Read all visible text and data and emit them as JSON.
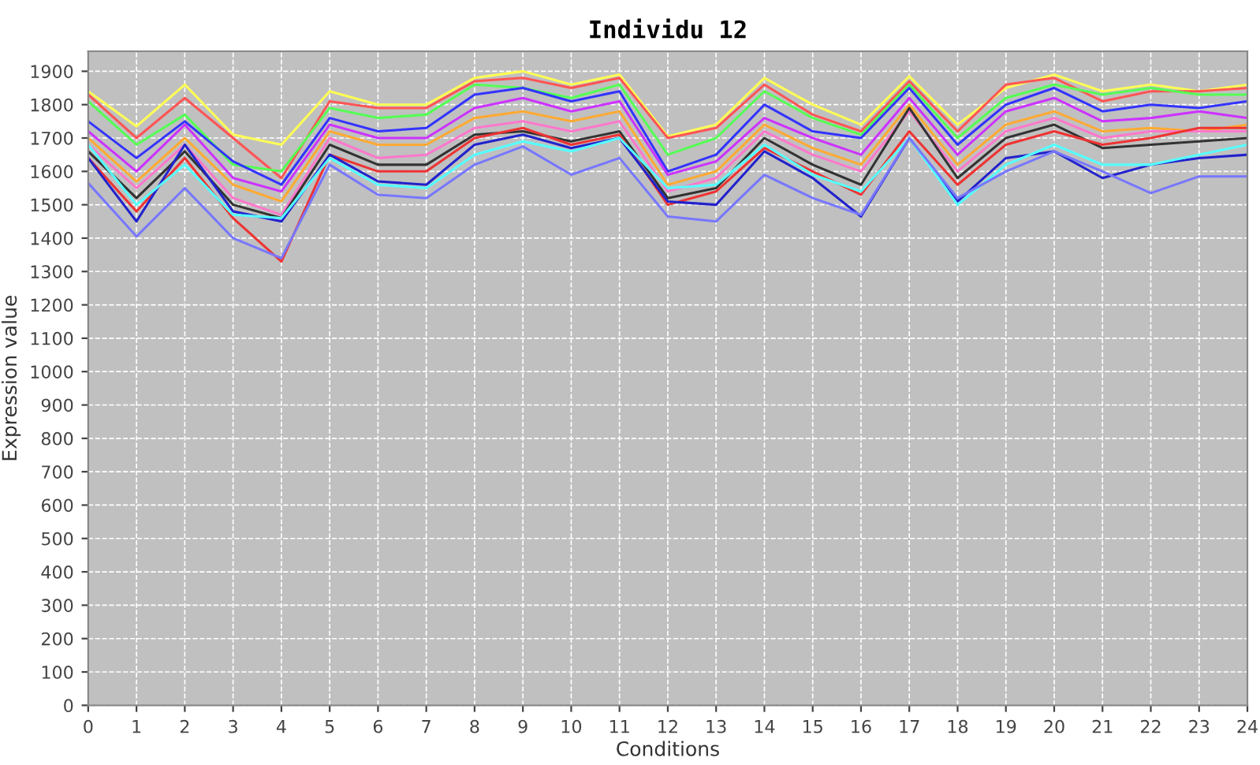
{
  "chart_data": {
    "type": "line",
    "title": "Individu 12",
    "xlabel": "Conditions",
    "ylabel": "Expression value",
    "x": [
      0,
      1,
      2,
      3,
      4,
      5,
      6,
      7,
      8,
      9,
      10,
      11,
      12,
      13,
      14,
      15,
      16,
      17,
      18,
      19,
      20,
      21,
      22,
      23,
      24
    ],
    "xlim": [
      0,
      24
    ],
    "xticks": [
      0,
      1,
      2,
      3,
      4,
      5,
      6,
      7,
      8,
      9,
      10,
      11,
      12,
      13,
      14,
      15,
      16,
      17,
      18,
      19,
      20,
      21,
      22,
      23,
      24
    ],
    "ylim": [
      0,
      1960
    ],
    "yticks": [
      0,
      100,
      200,
      300,
      400,
      500,
      600,
      700,
      800,
      900,
      1000,
      1100,
      1200,
      1300,
      1400,
      1500,
      1600,
      1700,
      1800,
      1900
    ],
    "grid": true,
    "legend": false,
    "marker": "none",
    "line_style": "solid",
    "series": [
      {
        "color": "#ffff55",
        "values": [
          1840,
          1735,
          1860,
          1710,
          1680,
          1840,
          1800,
          1800,
          1880,
          1900,
          1860,
          1890,
          1705,
          1740,
          1880,
          1800,
          1740,
          1885,
          1740,
          1850,
          1890,
          1840,
          1860,
          1840,
          1860
        ]
      },
      {
        "color": "#ff5555",
        "values": [
          1830,
          1700,
          1820,
          1700,
          1580,
          1810,
          1790,
          1790,
          1870,
          1880,
          1850,
          1880,
          1700,
          1730,
          1860,
          1770,
          1720,
          1870,
          1720,
          1860,
          1880,
          1810,
          1840,
          1840,
          1850
        ]
      },
      {
        "color": "#55ff55",
        "values": [
          1810,
          1680,
          1770,
          1620,
          1600,
          1790,
          1760,
          1770,
          1860,
          1850,
          1820,
          1860,
          1650,
          1700,
          1840,
          1760,
          1710,
          1860,
          1700,
          1820,
          1860,
          1830,
          1850,
          1830,
          1830
        ]
      },
      {
        "color": "#3333ff",
        "values": [
          1750,
          1640,
          1750,
          1630,
          1560,
          1760,
          1720,
          1730,
          1830,
          1850,
          1810,
          1840,
          1600,
          1650,
          1800,
          1720,
          1700,
          1850,
          1680,
          1800,
          1850,
          1780,
          1800,
          1790,
          1810
        ]
      },
      {
        "color": "#cc33ff",
        "values": [
          1720,
          1600,
          1740,
          1580,
          1540,
          1740,
          1700,
          1700,
          1790,
          1820,
          1780,
          1810,
          1590,
          1630,
          1760,
          1700,
          1650,
          1820,
          1650,
          1780,
          1820,
          1750,
          1760,
          1780,
          1760
        ]
      },
      {
        "color": "#ffaa33",
        "values": [
          1700,
          1570,
          1700,
          1560,
          1510,
          1720,
          1680,
          1680,
          1760,
          1780,
          1750,
          1780,
          1560,
          1600,
          1740,
          1670,
          1620,
          1800,
          1620,
          1740,
          1780,
          1720,
          1730,
          1720,
          1740
        ]
      },
      {
        "color": "#ff77cc",
        "values": [
          1680,
          1550,
          1680,
          1520,
          1470,
          1700,
          1640,
          1650,
          1730,
          1750,
          1720,
          1750,
          1540,
          1580,
          1720,
          1650,
          1600,
          1780,
          1600,
          1720,
          1760,
          1700,
          1720,
          1720,
          1720
        ]
      },
      {
        "color": "#333333",
        "values": [
          1660,
          1520,
          1660,
          1500,
          1460,
          1680,
          1620,
          1620,
          1710,
          1720,
          1690,
          1720,
          1520,
          1550,
          1700,
          1620,
          1560,
          1790,
          1580,
          1700,
          1740,
          1670,
          1680,
          1690,
          1700
        ]
      },
      {
        "color": "#ee3333",
        "values": [
          1640,
          1480,
          1640,
          1460,
          1330,
          1650,
          1600,
          1600,
          1700,
          1730,
          1680,
          1710,
          1500,
          1540,
          1670,
          1600,
          1530,
          1720,
          1560,
          1680,
          1720,
          1680,
          1700,
          1730,
          1730
        ]
      },
      {
        "color": "#2222cc",
        "values": [
          1640,
          1450,
          1680,
          1480,
          1450,
          1650,
          1570,
          1560,
          1680,
          1710,
          1670,
          1700,
          1510,
          1500,
          1660,
          1580,
          1465,
          1700,
          1510,
          1640,
          1660,
          1580,
          1620,
          1640,
          1650
        ]
      },
      {
        "color": "#55ffff",
        "values": [
          1680,
          1500,
          1620,
          1470,
          1460,
          1640,
          1560,
          1550,
          1650,
          1690,
          1660,
          1700,
          1550,
          1560,
          1680,
          1590,
          1540,
          1700,
          1500,
          1620,
          1680,
          1620,
          1620,
          1650,
          1680
        ]
      },
      {
        "color": "#7777ff",
        "values": [
          1565,
          1405,
          1550,
          1400,
          1340,
          1620,
          1530,
          1520,
          1620,
          1675,
          1590,
          1640,
          1465,
          1450,
          1590,
          1520,
          1470,
          1700,
          1520,
          1600,
          1660,
          1600,
          1535,
          1585,
          1585
        ]
      }
    ]
  }
}
